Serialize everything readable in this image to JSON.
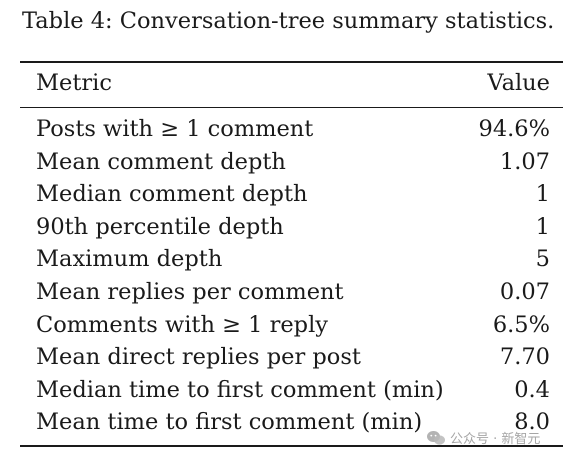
{
  "caption": "Table 4: Conversation-tree summary statistics.",
  "table": {
    "headers": [
      "Metric",
      "Value"
    ],
    "rows": [
      {
        "metric": "Posts with ≥ 1 comment",
        "value": "94.6%"
      },
      {
        "metric": "Mean comment depth",
        "value": "1.07"
      },
      {
        "metric": "Median comment depth",
        "value": "1"
      },
      {
        "metric": "90th percentile depth",
        "value": "1"
      },
      {
        "metric": "Maximum depth",
        "value": "5"
      },
      {
        "metric": "Mean replies per comment",
        "value": "0.07"
      },
      {
        "metric": "Comments with ≥ 1 reply",
        "value": "6.5%"
      },
      {
        "metric": "Mean direct replies per post",
        "value": "7.70"
      },
      {
        "metric": "Median time to first comment (min)",
        "value": "0.4"
      },
      {
        "metric": "Mean time to first comment (min)",
        "value": "8.0"
      }
    ]
  },
  "watermark": {
    "icon": "wechat-icon",
    "text": "公众号 · 新智元"
  }
}
